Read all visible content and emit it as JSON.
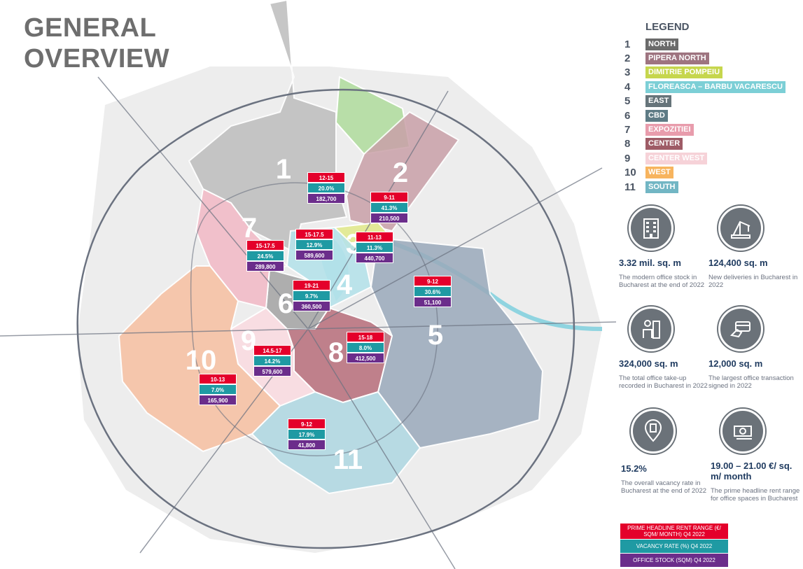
{
  "title": {
    "line1": "GENERAL",
    "line2": "OVERVIEW"
  },
  "legend": {
    "title": "LEGEND",
    "items": [
      {
        "num": "1",
        "label": "NORTH",
        "color": "#6b6b6b"
      },
      {
        "num": "2",
        "label": "PIPERA NORTH",
        "color": "#9e7480"
      },
      {
        "num": "3",
        "label": "DIMITRIE POMPEIU",
        "color": "#c6d64d"
      },
      {
        "num": "4",
        "label": "FLOREASCA – BARBU VACARESCU",
        "color": "#7ccfd6"
      },
      {
        "num": "5",
        "label": "EAST",
        "color": "#66747a"
      },
      {
        "num": "6",
        "label": "CBD",
        "color": "#5e7b85"
      },
      {
        "num": "7",
        "label": "EXPOZITIEI",
        "color": "#e89cac"
      },
      {
        "num": "8",
        "label": "CENTER",
        "color": "#9e5b66"
      },
      {
        "num": "9",
        "label": "CENTER WEST",
        "color": "#f6d2d8"
      },
      {
        "num": "10",
        "label": "WEST",
        "color": "#f7b45e"
      },
      {
        "num": "11",
        "label": "SOUTH",
        "color": "#72b6c4"
      }
    ]
  },
  "zones": [
    {
      "num": "1",
      "rent": "12-15",
      "vacancy": "20.0%",
      "stock": "182,700"
    },
    {
      "num": "2",
      "rent": "9-11",
      "vacancy": "41.3%",
      "stock": "210,500"
    },
    {
      "num": "3",
      "rent": "11-13",
      "vacancy": "11.3%",
      "stock": "440,700"
    },
    {
      "num": "4",
      "rent": "15-17.5",
      "vacancy": "12.9%",
      "stock": "589,600"
    },
    {
      "num": "5",
      "rent": "9-12",
      "vacancy": "30.6%",
      "stock": "51,100"
    },
    {
      "num": "6",
      "rent": "19-21",
      "vacancy": "9.7%",
      "stock": "360,500"
    },
    {
      "num": "7",
      "rent": "15-17.5",
      "vacancy": "24.5%",
      "stock": "289,800"
    },
    {
      "num": "8",
      "rent": "15-18",
      "vacancy": "8.0%",
      "stock": "412,500"
    },
    {
      "num": "9",
      "rent": "14.5-17",
      "vacancy": "14.2%",
      "stock": "579,600"
    },
    {
      "num": "10",
      "rent": "10-13",
      "vacancy": "7.0%",
      "stock": "165,900"
    },
    {
      "num": "11",
      "rent": "9-12",
      "vacancy": "17.9%",
      "stock": "41,800"
    }
  ],
  "kpis": [
    {
      "icon": "office-building-icon",
      "value": "3.32 mil. sq. m",
      "desc": "The modern office stock in Bucharest at the end of 2022"
    },
    {
      "icon": "crane-icon",
      "value": "124,400 sq. m",
      "desc": "New deliveries in Bucharest in 2022"
    },
    {
      "icon": "office-worker-icon",
      "value": "324,000 sq. m",
      "desc": "The total office take-up recorded in Bucharest in 2022"
    },
    {
      "icon": "handshake-card-icon",
      "value": "12,000 sq. m",
      "desc": "The largest office transaction signed in 2022"
    },
    {
      "icon": "location-building-icon",
      "value": "15.2%",
      "desc": "The overall vacancy rate in Bucharest at the end of 2022"
    },
    {
      "icon": "money-icon",
      "value": "19.00 – 21.00 €/ sq. m/ month",
      "desc": "The prime headline rent range for office spaces in Bucharest"
    }
  ],
  "key": {
    "rent": "PRIME HEADLINE RENT RANGE (€/ SQM/ MONTH) Q4 2022",
    "vacancy": "VACANCY RATE (%) Q4 2022",
    "stock": "OFFICE STOCK (SQM) Q4 2022"
  }
}
